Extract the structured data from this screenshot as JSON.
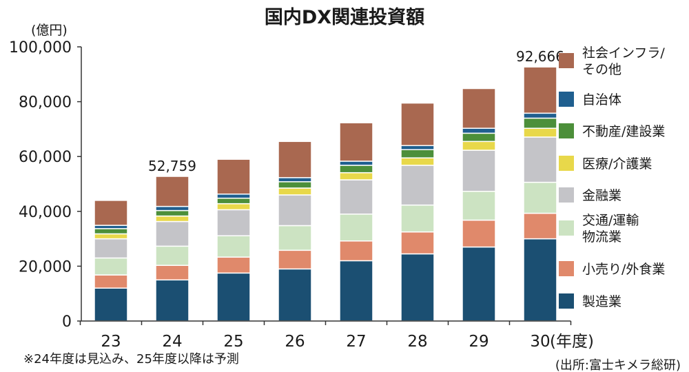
{
  "chart_data": {
    "type": "bar",
    "stacked": true,
    "title": "国内DX関連投資額",
    "ylabel": "(億円)",
    "xlabel": "(年度)",
    "ylim": [
      0,
      100000
    ],
    "yticks": [
      0,
      20000,
      40000,
      60000,
      80000,
      100000
    ],
    "ytick_labels": [
      "0",
      "20,000",
      "40,000",
      "60,000",
      "80,000",
      "100,000"
    ],
    "grid": false,
    "legend_position": "right",
    "categories": [
      "23",
      "24",
      "25",
      "26",
      "27",
      "28",
      "29",
      "30"
    ],
    "series": [
      {
        "name": "製造業",
        "color": "#1b4f72",
        "values": [
          12000,
          15000,
          17500,
          19000,
          22000,
          24500,
          27000,
          30000
        ]
      },
      {
        "name": "小売り/外食業",
        "color": "#e0896b",
        "values": [
          4800,
          5300,
          5800,
          6800,
          7200,
          8000,
          9800,
          9300
        ]
      },
      {
        "name": "交通/運輸物流業",
        "color": "#cce3c2",
        "values": [
          6200,
          7000,
          7800,
          9000,
          9800,
          9800,
          10500,
          11300
        ]
      },
      {
        "name": "金融業",
        "color": "#c4c4c8",
        "values": [
          7000,
          9000,
          9500,
          11200,
          12500,
          14500,
          15000,
          16500
        ]
      },
      {
        "name": "医療/介護業",
        "color": "#e8d84a",
        "values": [
          1800,
          2000,
          2200,
          2500,
          2600,
          2700,
          3200,
          3200
        ]
      },
      {
        "name": "不動産/建設業",
        "color": "#4c8f3a",
        "values": [
          1900,
          2000,
          2000,
          2300,
          2700,
          3000,
          3000,
          3700
        ]
      },
      {
        "name": "自治体",
        "color": "#1f5f8f",
        "values": [
          1200,
          1500,
          1500,
          1500,
          1500,
          1500,
          1800,
          1800
        ]
      },
      {
        "name": "社会インフラ/その他",
        "color": "#a96850",
        "values": [
          9100,
          10959,
          12700,
          13200,
          14000,
          15500,
          14500,
          16866
        ]
      }
    ],
    "totals_labels": {
      "24": "52,759",
      "30": "92,666"
    },
    "legend": [
      {
        "lines": [
          "社会インフラ/",
          "その他"
        ],
        "color": "#a96850"
      },
      {
        "lines": [
          "自治体"
        ],
        "color": "#1f5f8f"
      },
      {
        "lines": [
          "不動産/建設業"
        ],
        "color": "#4c8f3a"
      },
      {
        "lines": [
          "医療/介護業"
        ],
        "color": "#e8d84a"
      },
      {
        "lines": [
          "金融業"
        ],
        "color": "#c4c4c8"
      },
      {
        "lines": [
          "交通/運輸",
          "物流業"
        ],
        "color": "#cce3c2"
      },
      {
        "lines": [
          "小売り/外食業"
        ],
        "color": "#e0896b"
      },
      {
        "lines": [
          "製造業"
        ],
        "color": "#1b4f72"
      }
    ],
    "footnote": "※24年度は見込み、25年度以降は予測",
    "source": "(出所:富士キメラ総研)"
  }
}
